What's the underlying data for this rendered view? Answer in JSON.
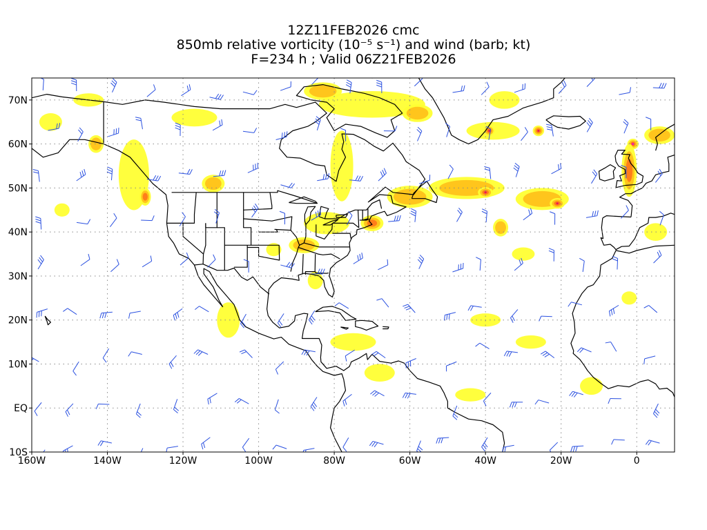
{
  "titles": {
    "line1": "12Z11FEB2026 cmc",
    "line2": "850mb relative vorticity (10⁻⁵ s⁻¹) and wind (barb; kt)",
    "line3": "F=234 h ; Valid 06Z21FEB2026"
  },
  "map": {
    "lon_range": [
      -160,
      10
    ],
    "lat_range": [
      -10,
      75
    ],
    "lon_ticks": [
      {
        "value": -160,
        "label": "160W"
      },
      {
        "value": -140,
        "label": "140W"
      },
      {
        "value": -120,
        "label": "120W"
      },
      {
        "value": -100,
        "label": "100W"
      },
      {
        "value": -80,
        "label": "80W"
      },
      {
        "value": -60,
        "label": "60W"
      },
      {
        "value": -40,
        "label": "40W"
      },
      {
        "value": -20,
        "label": "20W"
      },
      {
        "value": 0,
        "label": "0"
      }
    ],
    "lat_ticks": [
      {
        "value": 70,
        "label": "70N"
      },
      {
        "value": 60,
        "label": "60N"
      },
      {
        "value": 50,
        "label": "50N"
      },
      {
        "value": 40,
        "label": "40N"
      },
      {
        "value": 30,
        "label": "30N"
      },
      {
        "value": 20,
        "label": "20N"
      },
      {
        "value": 10,
        "label": "10N"
      },
      {
        "value": 0,
        "label": "EQ"
      },
      {
        "value": -10,
        "label": "10S"
      }
    ],
    "gridlines": "dotted",
    "colors": {
      "vort_low": "#ffff33",
      "vort_mid": "#ffc21a",
      "vort_high": "#ff7a1a",
      "vort_max": "#e8155a",
      "vort_extreme": "#ff00cc",
      "barb": "#2a50e0",
      "coast": "#000000"
    },
    "vorticity_features": [
      {
        "lon": -133,
        "lat": 53,
        "rx": 4,
        "ry": 8,
        "level": 1
      },
      {
        "lon": -130,
        "lat": 48,
        "rx": 1.5,
        "ry": 2,
        "level": 3
      },
      {
        "lon": -143,
        "lat": 60,
        "rx": 2,
        "ry": 2,
        "level": 2
      },
      {
        "lon": -112,
        "lat": 51,
        "rx": 3,
        "ry": 2,
        "level": 2
      },
      {
        "lon": -70,
        "lat": 69,
        "rx": 14,
        "ry": 3,
        "level": 1
      },
      {
        "lon": -83,
        "lat": 72,
        "rx": 5,
        "ry": 2,
        "level": 2
      },
      {
        "lon": -58,
        "lat": 67,
        "rx": 4,
        "ry": 2,
        "level": 2
      },
      {
        "lon": -35,
        "lat": 70,
        "rx": 4,
        "ry": 2,
        "level": 1
      },
      {
        "lon": -78,
        "lat": 55,
        "rx": 3,
        "ry": 8,
        "level": 1
      },
      {
        "lon": -60,
        "lat": 48,
        "rx": 6,
        "ry": 2.5,
        "level": 2
      },
      {
        "lon": -45,
        "lat": 50,
        "rx": 10,
        "ry": 2.5,
        "level": 2
      },
      {
        "lon": -25,
        "lat": 47.5,
        "rx": 7,
        "ry": 2.5,
        "level": 2
      },
      {
        "lon": -40,
        "lat": 49,
        "rx": 2,
        "ry": 1.2,
        "level": 4
      },
      {
        "lon": -21,
        "lat": 46.5,
        "rx": 2,
        "ry": 1.2,
        "level": 4
      },
      {
        "lon": -38,
        "lat": 63,
        "rx": 7,
        "ry": 2,
        "level": 1
      },
      {
        "lon": -39,
        "lat": 63,
        "rx": 1.5,
        "ry": 1.2,
        "level": 4
      },
      {
        "lon": -26,
        "lat": 63,
        "rx": 1.5,
        "ry": 1.2,
        "level": 4
      },
      {
        "lon": -1,
        "lat": 60,
        "rx": 1.5,
        "ry": 1.2,
        "level": 5
      },
      {
        "lon": -2,
        "lat": 54,
        "rx": 2,
        "ry": 6,
        "level": 3
      },
      {
        "lon": 6,
        "lat": 62,
        "rx": 4,
        "ry": 2,
        "level": 2
      },
      {
        "lon": -70,
        "lat": 42,
        "rx": 3,
        "ry": 1.8,
        "level": 3
      },
      {
        "lon": -82,
        "lat": 42,
        "rx": 6,
        "ry": 2.5,
        "level": 1
      },
      {
        "lon": -88,
        "lat": 37,
        "rx": 4,
        "ry": 1.8,
        "level": 2
      },
      {
        "lon": -36,
        "lat": 41,
        "rx": 2,
        "ry": 2,
        "level": 2
      },
      {
        "lon": -75,
        "lat": 15,
        "rx": 6,
        "ry": 2,
        "level": 1
      },
      {
        "lon": -68,
        "lat": 8,
        "rx": 4,
        "ry": 2,
        "level": 1
      },
      {
        "lon": -108,
        "lat": 20,
        "rx": 3,
        "ry": 4,
        "level": 1
      },
      {
        "lon": -40,
        "lat": 20,
        "rx": 4,
        "ry": 1.5,
        "level": 1
      },
      {
        "lon": -28,
        "lat": 15,
        "rx": 4,
        "ry": 1.5,
        "level": 1
      },
      {
        "lon": -44,
        "lat": 3,
        "rx": 4,
        "ry": 1.5,
        "level": 1
      },
      {
        "lon": -30,
        "lat": 35,
        "rx": 3,
        "ry": 1.5,
        "level": 1
      },
      {
        "lon": -2,
        "lat": 25,
        "rx": 2,
        "ry": 1.5,
        "level": 1
      },
      {
        "lon": -155,
        "lat": 65,
        "rx": 3,
        "ry": 2,
        "level": 1
      },
      {
        "lon": -117,
        "lat": 66,
        "rx": 6,
        "ry": 2,
        "level": 1
      },
      {
        "lon": -145,
        "lat": 70,
        "rx": 4,
        "ry": 1.5,
        "level": 1
      },
      {
        "lon": -96,
        "lat": 36,
        "rx": 2,
        "ry": 1.5,
        "level": 1
      },
      {
        "lon": -85,
        "lat": 29,
        "rx": 2,
        "ry": 2,
        "level": 1
      },
      {
        "lon": -152,
        "lat": 45,
        "rx": 2,
        "ry": 1.5,
        "level": 1
      },
      {
        "lon": -12,
        "lat": 5,
        "rx": 3,
        "ry": 2,
        "level": 1
      },
      {
        "lon": 5,
        "lat": 40,
        "rx": 3,
        "ry": 2,
        "level": 1
      }
    ]
  }
}
